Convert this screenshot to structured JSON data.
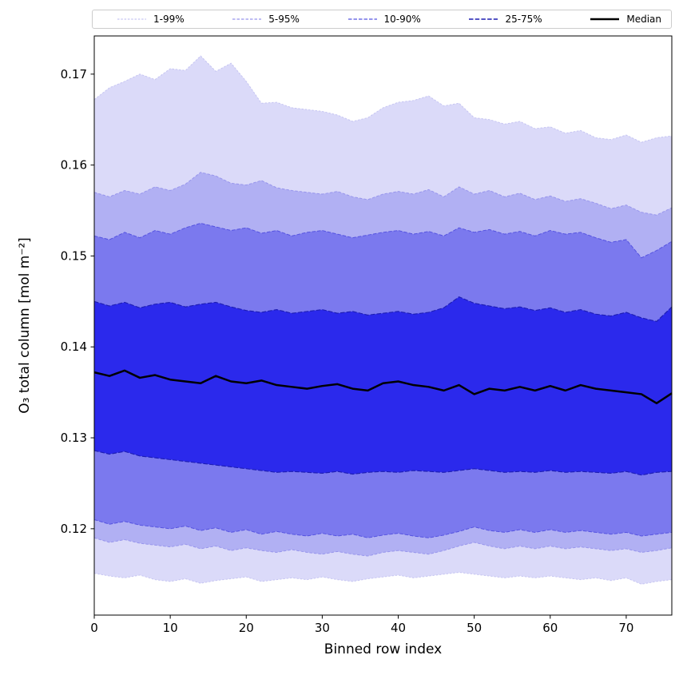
{
  "figure": {
    "background": "#ffffff"
  },
  "chart_data": {
    "type": "area",
    "title": "",
    "xlabel": "Binned row index",
    "ylabel": "O₃ total column [mol m⁻²]",
    "xlim": [
      0,
      76
    ],
    "ylim": [
      0.1105,
      0.1742
    ],
    "xticks": [
      0,
      10,
      20,
      30,
      40,
      50,
      60,
      70
    ],
    "yticks": [
      0.12,
      0.13,
      0.14,
      0.15,
      0.16,
      0.17
    ],
    "grid": false,
    "legend_position": "top-outside",
    "x": [
      0,
      2,
      4,
      6,
      8,
      10,
      12,
      14,
      16,
      18,
      20,
      22,
      24,
      26,
      28,
      30,
      32,
      34,
      36,
      38,
      40,
      42,
      44,
      46,
      48,
      50,
      52,
      54,
      56,
      58,
      60,
      62,
      64,
      66,
      68,
      70,
      72,
      74,
      76
    ],
    "series": {
      "p1": [
        0.1151,
        0.1148,
        0.1146,
        0.1149,
        0.1144,
        0.1142,
        0.1145,
        0.114,
        0.1143,
        0.1145,
        0.1147,
        0.1142,
        0.1144,
        0.1146,
        0.1144,
        0.1147,
        0.1144,
        0.1142,
        0.1145,
        0.1147,
        0.1149,
        0.1146,
        0.1148,
        0.115,
        0.1152,
        0.115,
        0.1148,
        0.1146,
        0.1148,
        0.1146,
        0.1148,
        0.1146,
        0.1144,
        0.1146,
        0.1143,
        0.1146,
        0.1139,
        0.1142,
        0.1144
      ],
      "p5": [
        0.119,
        0.1185,
        0.1188,
        0.1184,
        0.1182,
        0.118,
        0.1183,
        0.1178,
        0.1181,
        0.1176,
        0.1179,
        0.1176,
        0.1174,
        0.1177,
        0.1174,
        0.1172,
        0.1175,
        0.1172,
        0.117,
        0.1174,
        0.1176,
        0.1174,
        0.1172,
        0.1176,
        0.1181,
        0.1185,
        0.1181,
        0.1178,
        0.1181,
        0.1178,
        0.1181,
        0.1178,
        0.118,
        0.1178,
        0.1176,
        0.1178,
        0.1174,
        0.1176,
        0.1179
      ],
      "p10": [
        0.121,
        0.1205,
        0.1208,
        0.1204,
        0.1202,
        0.12,
        0.1203,
        0.1198,
        0.1201,
        0.1196,
        0.1199,
        0.1194,
        0.1197,
        0.1194,
        0.1192,
        0.1195,
        0.1192,
        0.1194,
        0.119,
        0.1193,
        0.1195,
        0.1192,
        0.119,
        0.1193,
        0.1197,
        0.1202,
        0.1198,
        0.1196,
        0.1199,
        0.1196,
        0.1199,
        0.1196,
        0.1198,
        0.1196,
        0.1194,
        0.1196,
        0.1192,
        0.1194,
        0.1196
      ],
      "p25": [
        0.1286,
        0.1282,
        0.1285,
        0.128,
        0.1278,
        0.1276,
        0.1274,
        0.1272,
        0.127,
        0.1268,
        0.1266,
        0.1264,
        0.1262,
        0.1263,
        0.1262,
        0.1261,
        0.1263,
        0.126,
        0.1262,
        0.1263,
        0.1262,
        0.1264,
        0.1263,
        0.1262,
        0.1264,
        0.1266,
        0.1264,
        0.1262,
        0.1263,
        0.1262,
        0.1264,
        0.1262,
        0.1263,
        0.1262,
        0.1261,
        0.1263,
        0.1259,
        0.1262,
        0.1263
      ],
      "median": [
        0.1372,
        0.1368,
        0.1374,
        0.1366,
        0.1369,
        0.1364,
        0.1362,
        0.136,
        0.1368,
        0.1362,
        0.136,
        0.1363,
        0.1358,
        0.1356,
        0.1354,
        0.1357,
        0.1359,
        0.1354,
        0.1352,
        0.136,
        0.1362,
        0.1358,
        0.1356,
        0.1352,
        0.1358,
        0.1348,
        0.1354,
        0.1352,
        0.1356,
        0.1352,
        0.1357,
        0.1352,
        0.1358,
        0.1354,
        0.1352,
        0.135,
        0.1348,
        0.1338,
        0.1349
      ],
      "p75": [
        0.145,
        0.1445,
        0.1449,
        0.1443,
        0.1447,
        0.1449,
        0.1444,
        0.1447,
        0.1449,
        0.1444,
        0.144,
        0.1438,
        0.1441,
        0.1437,
        0.1439,
        0.1441,
        0.1437,
        0.1439,
        0.1435,
        0.1437,
        0.1439,
        0.1436,
        0.1438,
        0.1443,
        0.1455,
        0.1448,
        0.1445,
        0.1442,
        0.1444,
        0.144,
        0.1443,
        0.1438,
        0.1441,
        0.1436,
        0.1434,
        0.1438,
        0.1432,
        0.1428,
        0.1444
      ],
      "p90": [
        0.1522,
        0.1518,
        0.1526,
        0.152,
        0.1528,
        0.1524,
        0.1531,
        0.1536,
        0.1532,
        0.1528,
        0.1531,
        0.1525,
        0.1528,
        0.1522,
        0.1526,
        0.1528,
        0.1524,
        0.152,
        0.1523,
        0.1526,
        0.1528,
        0.1524,
        0.1527,
        0.1522,
        0.1531,
        0.1526,
        0.1529,
        0.1524,
        0.1527,
        0.1522,
        0.1528,
        0.1524,
        0.1526,
        0.152,
        0.1515,
        0.1518,
        0.1498,
        0.1506,
        0.1516
      ],
      "p95": [
        0.157,
        0.1565,
        0.1572,
        0.1568,
        0.1576,
        0.1572,
        0.1579,
        0.1592,
        0.1588,
        0.158,
        0.1578,
        0.1583,
        0.1575,
        0.1572,
        0.157,
        0.1568,
        0.1571,
        0.1565,
        0.1562,
        0.1568,
        0.1571,
        0.1568,
        0.1573,
        0.1565,
        0.1576,
        0.1568,
        0.1572,
        0.1565,
        0.1569,
        0.1562,
        0.1566,
        0.156,
        0.1563,
        0.1558,
        0.1552,
        0.1556,
        0.1548,
        0.1545,
        0.1553
      ],
      "p99": [
        0.1672,
        0.1685,
        0.1692,
        0.17,
        0.1694,
        0.1706,
        0.1704,
        0.172,
        0.1703,
        0.1712,
        0.1692,
        0.1668,
        0.1669,
        0.1663,
        0.1661,
        0.1659,
        0.1655,
        0.1648,
        0.1652,
        0.1663,
        0.1669,
        0.1671,
        0.1676,
        0.1665,
        0.1668,
        0.1652,
        0.165,
        0.1645,
        0.1648,
        0.164,
        0.1642,
        0.1635,
        0.1638,
        0.163,
        0.1628,
        0.1633,
        0.1625,
        0.163,
        0.1632
      ]
    },
    "bands": [
      {
        "label": "1-99%",
        "lower": "p1",
        "upper": "p99",
        "fill": "#dbdaf9",
        "edge": "#c6c5f2",
        "dash": "2.5,1.8",
        "edge_width": 1
      },
      {
        "label": "5-95%",
        "lower": "p5",
        "upper": "p95",
        "fill": "#b1b0f3",
        "edge": "#9795ec",
        "dash": "3.5,2",
        "edge_width": 1
      },
      {
        "label": "10-90%",
        "lower": "p10",
        "upper": "p90",
        "fill": "#7b79ee",
        "edge": "#5553e0",
        "dash": "4.5,2",
        "edge_width": 1
      },
      {
        "label": "25-75%",
        "lower": "p25",
        "upper": "p75",
        "fill": "#2b29ec",
        "edge": "#1d1db2",
        "dash": "5.5,2.2",
        "edge_width": 1.1
      }
    ],
    "median_line": {
      "label": "Median",
      "series": "median",
      "color": "#000000",
      "width": 2.5
    },
    "legend": [
      {
        "label": "1-99%",
        "color": "#c6c5f2",
        "dash": "2.5,1.8",
        "width": 1.2
      },
      {
        "label": "5-95%",
        "color": "#9795ec",
        "dash": "3.5,2",
        "width": 1.2
      },
      {
        "label": "10-90%",
        "color": "#5553e0",
        "dash": "4.5,2",
        "width": 1.2
      },
      {
        "label": "25-75%",
        "color": "#1d1db2",
        "dash": "5.5,2.2",
        "width": 1.4
      },
      {
        "label": "Median",
        "color": "#000000",
        "dash": "",
        "width": 2.5
      }
    ],
    "axis_color": "#000000",
    "tick_label_color": "#000000"
  }
}
